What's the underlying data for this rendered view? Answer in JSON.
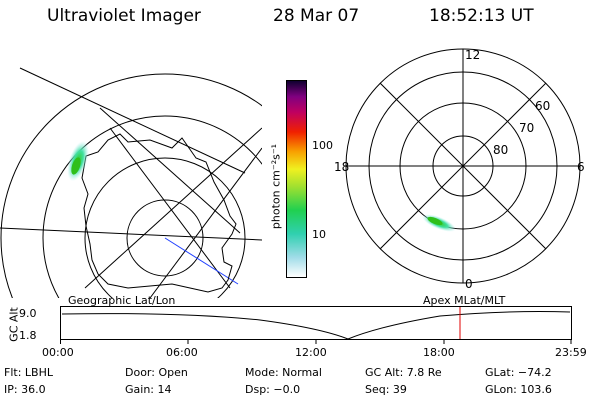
{
  "header": {
    "instrument": "Ultraviolet Imager",
    "date": "28 Mar 07",
    "time": "18:52:13 UT"
  },
  "colorbar": {
    "unit_label": "photon cm⁻²s⁻¹",
    "ticks": [
      "100",
      "10"
    ]
  },
  "left_panel": {
    "label": "Geographic Lat/Lon"
  },
  "right_panel": {
    "label": "Apex  MLat/MLT",
    "mlt_labels": {
      "top": "12",
      "bottom": "0",
      "left": "18",
      "right": "6"
    },
    "lat_labels": [
      "60",
      "70",
      "80"
    ]
  },
  "altitude_plot": {
    "ylabel": "GC Alt",
    "ytick_top": "9.0",
    "ytick_bottom": "1.8",
    "xticks": [
      "00:00",
      "06:00",
      "12:00",
      "18:00",
      "23:59"
    ]
  },
  "info": {
    "filter": "Flt: LBHL",
    "door": "Door: Open",
    "mode": "Mode: Normal",
    "gc_alt": "GC Alt: 7.8 Re",
    "glat": "GLat: −74.2",
    "ip": "IP: 36.0",
    "gain": "Gain: 14",
    "dsp": "Dsp:    −0.0",
    "seq": "Seq: 39",
    "glon": "GLon: 103.6"
  }
}
